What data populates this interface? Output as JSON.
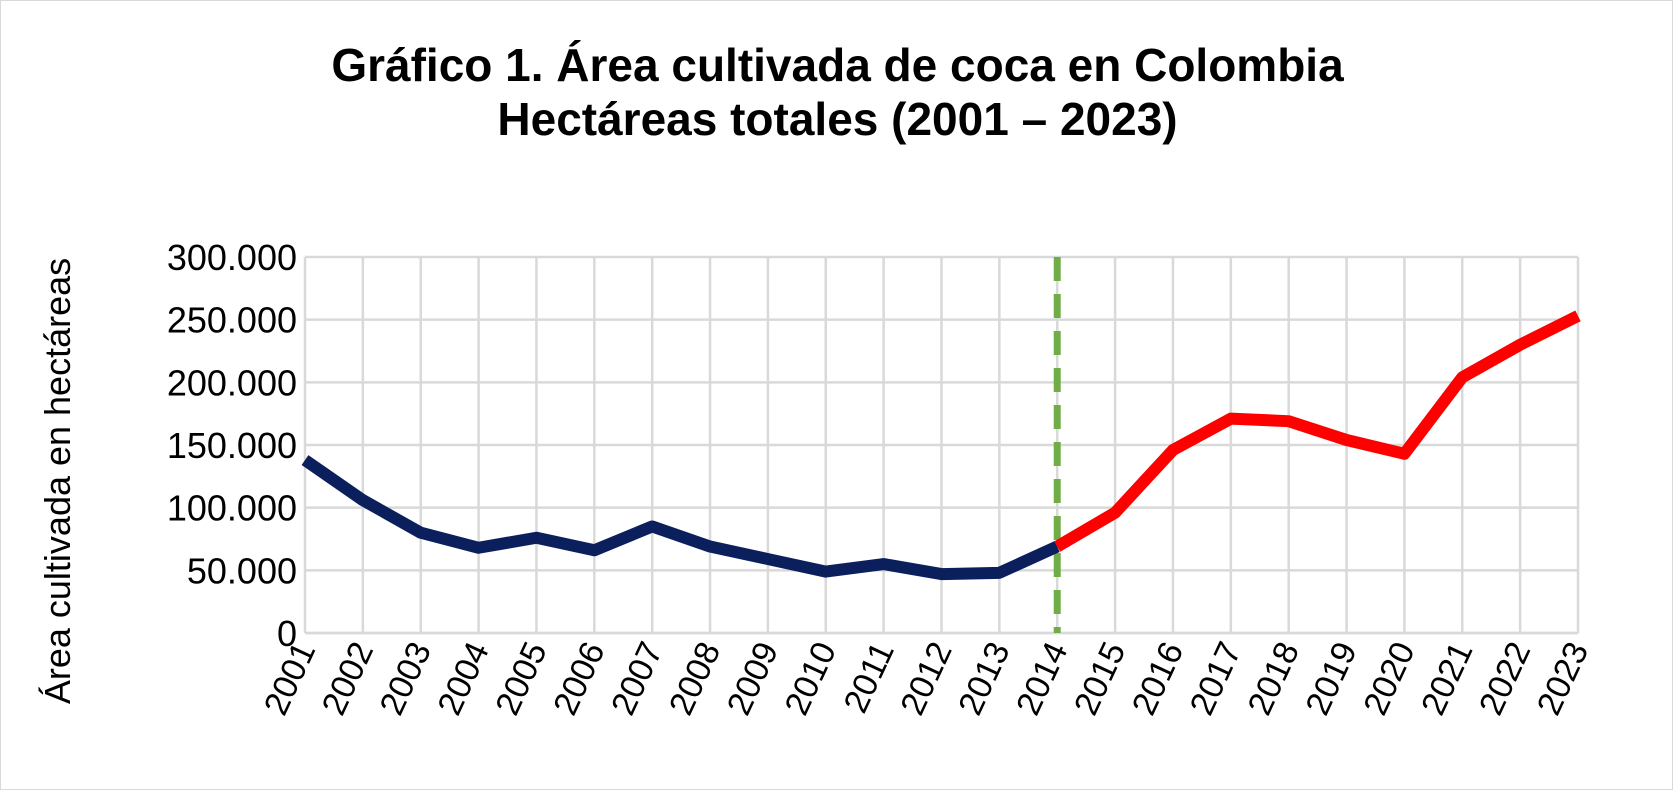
{
  "chart_data": {
    "type": "line",
    "title": "Gráfico 1. Área cultivada de coca en Colombia",
    "subtitle": "Hectáreas totales (2001 – 2023)",
    "xlabel": "",
    "ylabel": "Área cultivada en hectáreas",
    "ylim": [
      0,
      300000
    ],
    "yticks": [
      0,
      50000,
      100000,
      150000,
      200000,
      250000,
      300000
    ],
    "ytick_labels": [
      "0",
      "50.000",
      "100.000",
      "150.000",
      "200.000",
      "250.000",
      "300.000"
    ],
    "grid": true,
    "categories": [
      "2001",
      "2002",
      "2003",
      "2004",
      "2005",
      "2006",
      "2007",
      "2008",
      "2009",
      "2010",
      "2011",
      "2012",
      "2013",
      "2014",
      "2015",
      "2016",
      "2017",
      "2018",
      "2019",
      "2020",
      "2021",
      "2022",
      "2023"
    ],
    "values": [
      138000,
      106000,
      80000,
      68000,
      76000,
      66000,
      85000,
      69000,
      59000,
      49000,
      55000,
      47000,
      48000,
      69000,
      96000,
      146000,
      171000,
      169000,
      154000,
      143000,
      204000,
      230000,
      253000
    ],
    "series_colors": {
      "before": "#0a1f5c",
      "after": "#ff0000"
    },
    "split_year": "2014",
    "marker_line_color": "#70ad47"
  }
}
